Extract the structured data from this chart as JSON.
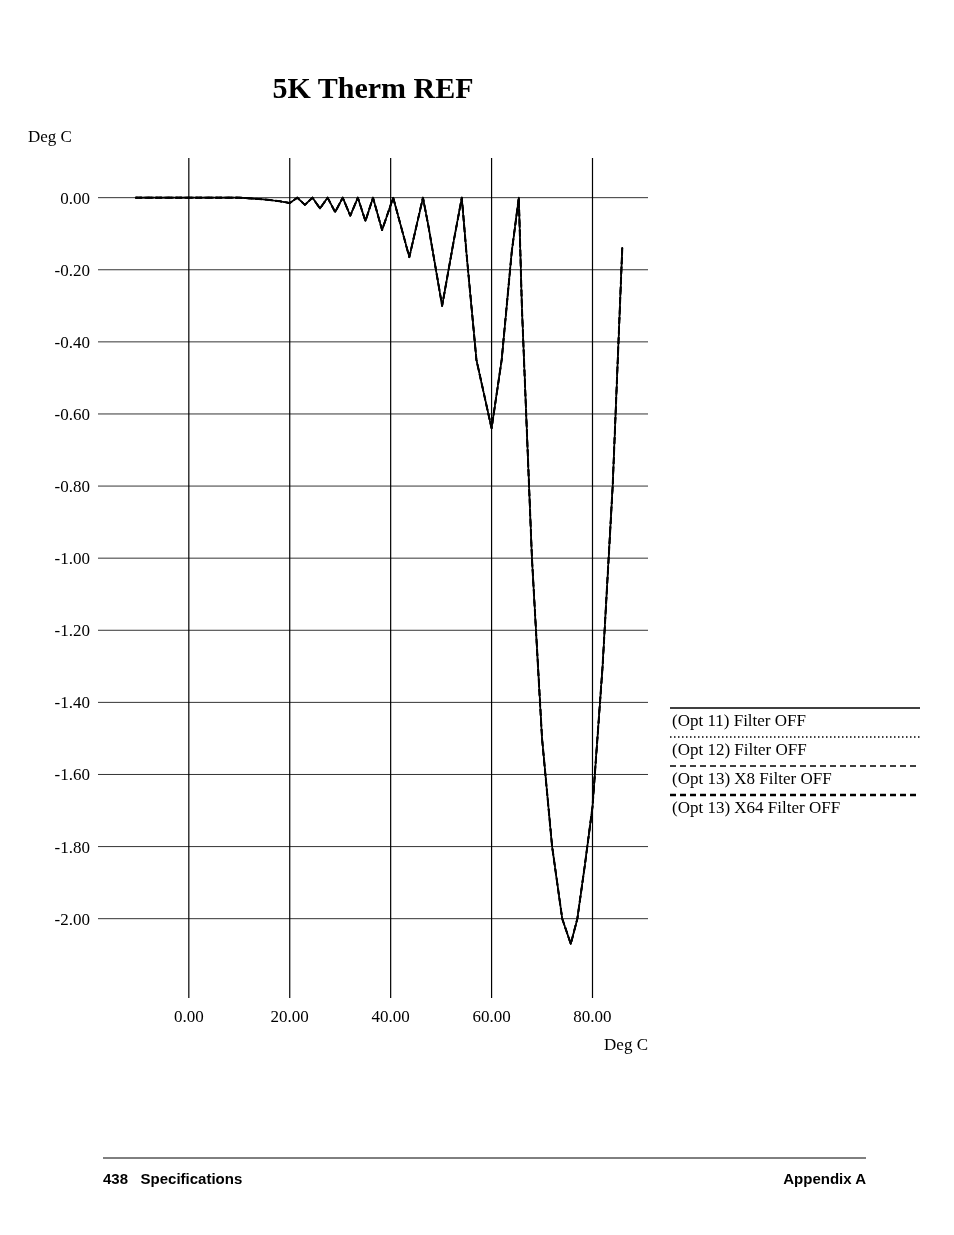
{
  "chart_data": {
    "type": "line",
    "title": "5K Therm REF",
    "xlabel": "Deg C",
    "ylabel": "Deg C",
    "x": [
      -10.5,
      0,
      10,
      15,
      18,
      20,
      21.5,
      23,
      24.5,
      26,
      27.5,
      29,
      30.5,
      32,
      33.5,
      35,
      36.5,
      38.3,
      40.5,
      43.7,
      46.4,
      47.5,
      50.2,
      52.5,
      54.1,
      55,
      57,
      60,
      62,
      64,
      65.4,
      66,
      68,
      70,
      72,
      74,
      75.7,
      77,
      78.5,
      80,
      82,
      84,
      85.9
    ],
    "series": [
      {
        "name": "(Opt 11) Filter OFF",
        "color": "#000000",
        "line_style": "solid",
        "values": [
          0,
          0,
          0,
          -0.005,
          -0.01,
          -0.015,
          0,
          -0.02,
          0,
          -0.03,
          0,
          -0.04,
          0,
          -0.05,
          0,
          -0.065,
          0,
          -0.09,
          0,
          -0.165,
          0,
          -0.08,
          -0.3,
          -0.12,
          0,
          -0.15,
          -0.45,
          -0.64,
          -0.45,
          -0.15,
          0,
          -0.3,
          -1.0,
          -1.5,
          -1.8,
          -2.0,
          -2.07,
          -2.0,
          -1.85,
          -1.69,
          -1.3,
          -0.8,
          -0.14
        ]
      },
      {
        "name": "(Opt 12) Filter OFF",
        "color": "#000000",
        "line_style": "dotted",
        "values": [
          0,
          0,
          0,
          -0.005,
          -0.01,
          -0.015,
          0,
          -0.02,
          0,
          -0.03,
          0,
          -0.04,
          0,
          -0.05,
          0,
          -0.065,
          0,
          -0.09,
          0,
          -0.165,
          0,
          -0.08,
          -0.3,
          -0.12,
          0,
          -0.15,
          -0.45,
          -0.64,
          -0.45,
          -0.15,
          0,
          -0.3,
          -1.0,
          -1.5,
          -1.8,
          -2.0,
          -2.07,
          -2.0,
          -1.85,
          -1.69,
          -1.3,
          -0.8,
          -0.14
        ]
      },
      {
        "name": "(Opt 13) X8 Filter OFF",
        "color": "#000000",
        "line_style": "dashed",
        "values": [
          0,
          0,
          0,
          -0.005,
          -0.01,
          -0.015,
          0,
          -0.02,
          0,
          -0.03,
          0,
          -0.04,
          0,
          -0.05,
          0,
          -0.065,
          0,
          -0.09,
          0,
          -0.165,
          0,
          -0.08,
          -0.3,
          -0.12,
          0,
          -0.15,
          -0.45,
          -0.64,
          -0.45,
          -0.15,
          0,
          -0.3,
          -1.0,
          -1.5,
          -1.8,
          -2.0,
          -2.07,
          -2.0,
          -1.85,
          -1.69,
          -1.3,
          -0.8,
          -0.14
        ]
      },
      {
        "name": "(Opt 13) X64 Filter OFF",
        "color": "#000000",
        "line_style": "dashed",
        "values": [
          0,
          0,
          0,
          -0.005,
          -0.01,
          -0.015,
          0,
          -0.02,
          0,
          -0.03,
          0,
          -0.04,
          0,
          -0.05,
          0,
          -0.065,
          0,
          -0.09,
          0,
          -0.165,
          0,
          -0.08,
          -0.3,
          -0.12,
          0,
          -0.15,
          -0.45,
          -0.64,
          -0.45,
          -0.15,
          0,
          -0.3,
          -1.0,
          -1.5,
          -1.8,
          -2.0,
          -2.07,
          -2.0,
          -1.85,
          -1.69,
          -1.3,
          -0.8,
          -0.14
        ]
      }
    ],
    "xlim": [
      -18,
      91
    ],
    "ylim": [
      -2.22,
      0.11
    ],
    "xticks": [
      {
        "value": 0,
        "label": "0.00"
      },
      {
        "value": 20,
        "label": "20.00"
      },
      {
        "value": 40,
        "label": "40.00"
      },
      {
        "value": 60,
        "label": "60.00"
      },
      {
        "value": 80,
        "label": "80.00"
      }
    ],
    "yticks": [
      {
        "value": 0,
        "label": "0.00"
      },
      {
        "value": -0.2,
        "label": "-0.20"
      },
      {
        "value": -0.4,
        "label": "-0.40"
      },
      {
        "value": -0.6,
        "label": "-0.60"
      },
      {
        "value": -0.8,
        "label": "-0.80"
      },
      {
        "value": -1,
        "label": "-1.00"
      },
      {
        "value": -1.2,
        "label": "-1.20"
      },
      {
        "value": -1.4,
        "label": "-1.40"
      },
      {
        "value": -1.6,
        "label": "-1.60"
      },
      {
        "value": -1.8,
        "label": "-1.80"
      },
      {
        "value": -2,
        "label": "-2.00"
      }
    ],
    "grid": true,
    "legend": "right",
    "annotations": [
      "438   Specifications",
      "Appendix A"
    ]
  }
}
